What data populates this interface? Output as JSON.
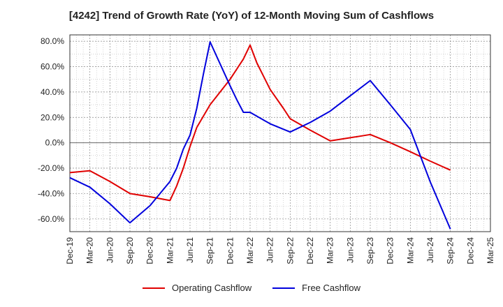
{
  "chart_data": {
    "type": "line",
    "title": "[4242]  Trend of Growth Rate (YoY) of 12-Month Moving Sum of Cashflows",
    "xlabel": "",
    "ylabel": "",
    "x_ticks": [
      "Dec-19",
      "Mar-20",
      "Jun-20",
      "Sep-20",
      "Dec-20",
      "Mar-21",
      "Jun-21",
      "Sep-21",
      "Dec-21",
      "Mar-22",
      "Jun-22",
      "Sep-22",
      "Dec-22",
      "Mar-23",
      "Jun-23",
      "Sep-23",
      "Dec-23",
      "Mar-24",
      "Jun-24",
      "Sep-24",
      "Dec-24",
      "Mar-25"
    ],
    "y_ticks": [
      "80.0%",
      "60.0%",
      "40.0%",
      "20.0%",
      "0.0%",
      "-20.0%",
      "-40.0%",
      "-60.0%"
    ],
    "ylim": [
      -70,
      85
    ],
    "grid": true,
    "legend_position": "bottom",
    "series": [
      {
        "name": "Operating Cashflow",
        "color": "#e00000",
        "points": [
          [
            "Dec-19",
            -23.5
          ],
          [
            "Mar-20",
            -22
          ],
          [
            "Jun-20",
            -30.5
          ],
          [
            "Sep-20",
            -40
          ],
          [
            "Dec-20",
            -42.5
          ],
          [
            "Mar-21",
            -45.5
          ],
          [
            "Apr-21",
            -34
          ],
          [
            "May-21",
            -20
          ],
          [
            "Jun-21",
            -3
          ],
          [
            "Jul-21",
            12
          ],
          [
            "Sep-21",
            30
          ],
          [
            "Dec-21",
            50
          ],
          [
            "Jan-22",
            58
          ],
          [
            "Feb-22",
            66
          ],
          [
            "Mar-22",
            77
          ],
          [
            "Apr-22",
            63
          ],
          [
            "Jun-22",
            42
          ],
          [
            "Aug-22",
            27
          ],
          [
            "Sep-22",
            19
          ],
          [
            "Dec-22",
            10
          ],
          [
            "Mar-23",
            1.5
          ],
          [
            "Jun-23",
            4
          ],
          [
            "Sep-23",
            6.5
          ],
          [
            "Dec-23",
            0
          ],
          [
            "Mar-24",
            -7
          ],
          [
            "Jun-24",
            -14.5
          ],
          [
            "Sep-24",
            -21.5
          ]
        ]
      },
      {
        "name": "Free Cashflow",
        "color": "#0000dd",
        "points": [
          [
            "Dec-19",
            -27.5
          ],
          [
            "Mar-20",
            -35
          ],
          [
            "Jun-20",
            -48
          ],
          [
            "Sep-20",
            -63
          ],
          [
            "Dec-20",
            -49.5
          ],
          [
            "Mar-21",
            -30.5
          ],
          [
            "Apr-21",
            -20
          ],
          [
            "May-21",
            -5
          ],
          [
            "Jun-21",
            6
          ],
          [
            "Jul-21",
            27
          ],
          [
            "Aug-21",
            54
          ],
          [
            "Sep-21",
            79.5
          ],
          [
            "Dec-21",
            45
          ],
          [
            "Jan-22",
            34
          ],
          [
            "Feb-22",
            24
          ],
          [
            "Mar-22",
            24
          ],
          [
            "Jun-22",
            15
          ],
          [
            "Sep-22",
            8.5
          ],
          [
            "Dec-22",
            16
          ],
          [
            "Mar-23",
            25
          ],
          [
            "Jun-23",
            37
          ],
          [
            "Sep-23",
            49
          ],
          [
            "Dec-23",
            30
          ],
          [
            "Mar-24",
            10.5
          ],
          [
            "Jun-24",
            -31
          ],
          [
            "Sep-24",
            -68
          ]
        ]
      }
    ]
  }
}
